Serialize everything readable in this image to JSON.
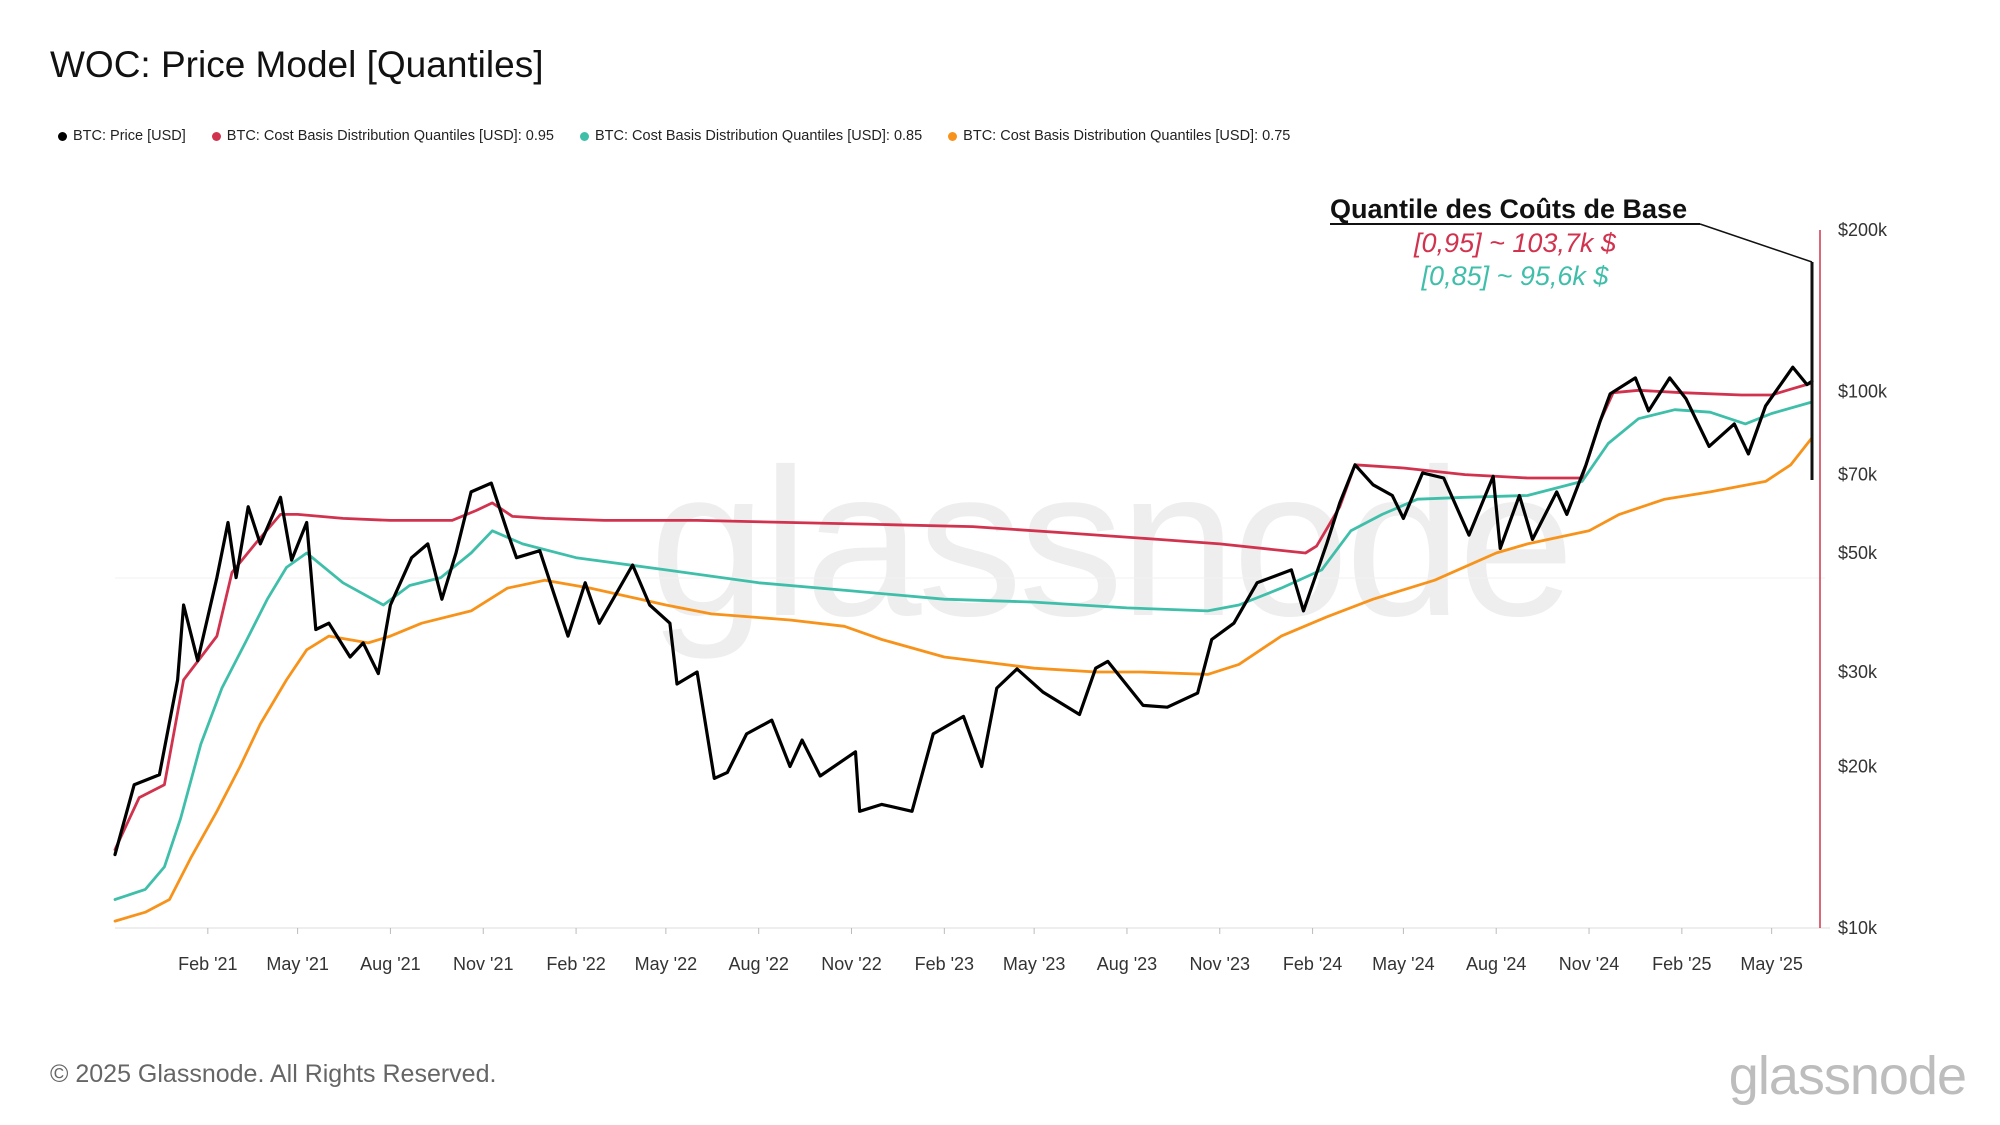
{
  "title": "WOC: Price Model [Quantiles]",
  "legend": [
    {
      "label": "BTC: Price [USD]",
      "color": "#000000"
    },
    {
      "label": "BTC: Cost Basis Distribution Quantiles [USD]: 0.95",
      "color": "#d1334f"
    },
    {
      "label": "BTC: Cost Basis Distribution Quantiles [USD]: 0.85",
      "color": "#3fbfaa"
    },
    {
      "label": "BTC: Cost Basis Distribution Quantiles [USD]: 0.75",
      "color": "#f7931a"
    }
  ],
  "annotation": {
    "title": "Quantile des Coûts de Base",
    "line1": "[0,95] ~ 103,7k $",
    "line2": "[0,85] ~ 95,6k $",
    "color1": "#d1334f",
    "color2": "#3fbfaa"
  },
  "watermark": "glassnode",
  "footer": {
    "copyright": "© 2025 Glassnode. All Rights Reserved.",
    "logo": "glassnode"
  },
  "chart_data": {
    "type": "line",
    "scale": "log",
    "ylim": [
      10000,
      200000
    ],
    "xlim": [
      "2020-11-01",
      "2025-06-10"
    ],
    "xticks": [
      {
        "date": "2021-02-01",
        "label": "Feb '21"
      },
      {
        "date": "2021-05-01",
        "label": "May '21"
      },
      {
        "date": "2021-08-01",
        "label": "Aug '21"
      },
      {
        "date": "2021-11-01",
        "label": "Nov '21"
      },
      {
        "date": "2022-02-01",
        "label": "Feb '22"
      },
      {
        "date": "2022-05-01",
        "label": "May '22"
      },
      {
        "date": "2022-08-01",
        "label": "Aug '22"
      },
      {
        "date": "2022-11-01",
        "label": "Nov '22"
      },
      {
        "date": "2023-02-01",
        "label": "Feb '23"
      },
      {
        "date": "2023-05-01",
        "label": "May '23"
      },
      {
        "date": "2023-08-01",
        "label": "Aug '23"
      },
      {
        "date": "2023-11-01",
        "label": "Nov '23"
      },
      {
        "date": "2024-02-01",
        "label": "Feb '24"
      },
      {
        "date": "2024-05-01",
        "label": "May '24"
      },
      {
        "date": "2024-08-01",
        "label": "Aug '24"
      },
      {
        "date": "2024-11-01",
        "label": "Nov '24"
      },
      {
        "date": "2025-02-01",
        "label": "Feb '25"
      },
      {
        "date": "2025-05-01",
        "label": "May '25"
      }
    ],
    "yticks": [
      {
        "value": 10000,
        "label": "$10k"
      },
      {
        "value": 20000,
        "label": "$20k"
      },
      {
        "value": 30000,
        "label": "$30k"
      },
      {
        "value": 50000,
        "label": "$50k"
      },
      {
        "value": 70000,
        "label": "$70k"
      },
      {
        "value": 100000,
        "label": "$100k"
      },
      {
        "value": 200000,
        "label": "$200k"
      }
    ],
    "series": [
      {
        "name": "BTC: Price [USD]",
        "color": "#000000",
        "points": [
          [
            "2020-11-01",
            13700
          ],
          [
            "2020-11-20",
            18500
          ],
          [
            "2020-12-15",
            19300
          ],
          [
            "2021-01-02",
            29000
          ],
          [
            "2021-01-08",
            40000
          ],
          [
            "2021-01-22",
            31500
          ],
          [
            "2021-02-10",
            45000
          ],
          [
            "2021-02-21",
            57000
          ],
          [
            "2021-03-01",
            45000
          ],
          [
            "2021-03-13",
            61000
          ],
          [
            "2021-03-25",
            52000
          ],
          [
            "2021-04-14",
            63500
          ],
          [
            "2021-04-25",
            48500
          ],
          [
            "2021-05-10",
            57000
          ],
          [
            "2021-05-19",
            36000
          ],
          [
            "2021-06-01",
            37000
          ],
          [
            "2021-06-22",
            32000
          ],
          [
            "2021-07-05",
            34000
          ],
          [
            "2021-07-20",
            29800
          ],
          [
            "2021-08-01",
            40000
          ],
          [
            "2021-08-22",
            49000
          ],
          [
            "2021-09-07",
            52000
          ],
          [
            "2021-09-21",
            41000
          ],
          [
            "2021-10-05",
            50000
          ],
          [
            "2021-10-20",
            65000
          ],
          [
            "2021-11-09",
            67500
          ],
          [
            "2021-11-26",
            54000
          ],
          [
            "2021-12-04",
            49000
          ],
          [
            "2021-12-27",
            50500
          ],
          [
            "2022-01-10",
            42000
          ],
          [
            "2022-01-24",
            35000
          ],
          [
            "2022-02-10",
            44000
          ],
          [
            "2022-02-24",
            37000
          ],
          [
            "2022-03-29",
            47500
          ],
          [
            "2022-04-15",
            40000
          ],
          [
            "2022-05-05",
            37000
          ],
          [
            "2022-05-12",
            28500
          ],
          [
            "2022-06-01",
            30000
          ],
          [
            "2022-06-18",
            19000
          ],
          [
            "2022-07-01",
            19500
          ],
          [
            "2022-07-20",
            23000
          ],
          [
            "2022-08-14",
            24400
          ],
          [
            "2022-09-01",
            20000
          ],
          [
            "2022-09-13",
            22400
          ],
          [
            "2022-10-01",
            19200
          ],
          [
            "2022-11-05",
            21300
          ],
          [
            "2022-11-09",
            16500
          ],
          [
            "2022-12-01",
            17000
          ],
          [
            "2022-12-31",
            16500
          ],
          [
            "2023-01-21",
            23000
          ],
          [
            "2023-02-20",
            24800
          ],
          [
            "2023-03-10",
            20000
          ],
          [
            "2023-03-25",
            28000
          ],
          [
            "2023-04-14",
            30400
          ],
          [
            "2023-05-10",
            27500
          ],
          [
            "2023-06-15",
            25000
          ],
          [
            "2023-07-01",
            30500
          ],
          [
            "2023-07-13",
            31400
          ],
          [
            "2023-08-17",
            26000
          ],
          [
            "2023-09-10",
            25800
          ],
          [
            "2023-10-10",
            27400
          ],
          [
            "2023-10-24",
            34500
          ],
          [
            "2023-11-15",
            37000
          ],
          [
            "2023-12-08",
            44000
          ],
          [
            "2024-01-11",
            46500
          ],
          [
            "2024-01-23",
            39000
          ],
          [
            "2024-02-15",
            52000
          ],
          [
            "2024-02-28",
            62000
          ],
          [
            "2024-03-14",
            73000
          ],
          [
            "2024-04-01",
            67000
          ],
          [
            "2024-04-20",
            64000
          ],
          [
            "2024-05-01",
            58000
          ],
          [
            "2024-05-20",
            70500
          ],
          [
            "2024-06-10",
            69000
          ],
          [
            "2024-07-05",
            54000
          ],
          [
            "2024-07-29",
            69500
          ],
          [
            "2024-08-05",
            51000
          ],
          [
            "2024-08-24",
            64000
          ],
          [
            "2024-09-06",
            53000
          ],
          [
            "2024-09-30",
            65000
          ],
          [
            "2024-10-10",
            59000
          ],
          [
            "2024-10-29",
            73000
          ],
          [
            "2024-11-12",
            88000
          ],
          [
            "2024-11-22",
            99000
          ],
          [
            "2024-12-17",
            106000
          ],
          [
            "2024-12-30",
            92000
          ],
          [
            "2025-01-20",
            106000
          ],
          [
            "2025-02-05",
            97000
          ],
          [
            "2025-02-28",
            79000
          ],
          [
            "2025-03-25",
            87000
          ],
          [
            "2025-04-08",
            76500
          ],
          [
            "2025-04-25",
            94000
          ],
          [
            "2025-05-22",
            111000
          ],
          [
            "2025-06-05",
            103000
          ],
          [
            "2025-06-10",
            104500
          ]
        ]
      },
      {
        "name": "BTC: Cost Basis Distribution Quantiles [USD]: 0.95",
        "color": "#d1334f",
        "points": [
          [
            "2020-11-01",
            14000
          ],
          [
            "2020-11-25",
            17500
          ],
          [
            "2020-12-20",
            18500
          ],
          [
            "2021-01-08",
            29000
          ],
          [
            "2021-02-10",
            35000
          ],
          [
            "2021-02-25",
            46000
          ],
          [
            "2021-03-20",
            52000
          ],
          [
            "2021-04-14",
            59000
          ],
          [
            "2021-05-01",
            59000
          ],
          [
            "2021-06-15",
            58000
          ],
          [
            "2021-08-01",
            57500
          ],
          [
            "2021-10-01",
            57500
          ],
          [
            "2021-10-25",
            60000
          ],
          [
            "2021-11-10",
            62000
          ],
          [
            "2021-11-30",
            58500
          ],
          [
            "2022-01-01",
            58000
          ],
          [
            "2022-03-01",
            57500
          ],
          [
            "2022-06-01",
            57500
          ],
          [
            "2022-09-01",
            57000
          ],
          [
            "2022-12-01",
            56500
          ],
          [
            "2023-03-01",
            56000
          ],
          [
            "2023-06-01",
            54500
          ],
          [
            "2023-09-01",
            53000
          ],
          [
            "2023-11-01",
            52000
          ],
          [
            "2024-01-25",
            50000
          ],
          [
            "2024-02-05",
            51500
          ],
          [
            "2024-02-28",
            61000
          ],
          [
            "2024-03-14",
            73000
          ],
          [
            "2024-05-01",
            72000
          ],
          [
            "2024-07-01",
            70000
          ],
          [
            "2024-09-01",
            69000
          ],
          [
            "2024-10-25",
            69000
          ],
          [
            "2024-11-12",
            88000
          ],
          [
            "2024-11-25",
            99500
          ],
          [
            "2024-12-20",
            100500
          ],
          [
            "2025-02-01",
            99500
          ],
          [
            "2025-04-01",
            98500
          ],
          [
            "2025-05-01",
            98500
          ],
          [
            "2025-05-20",
            101000
          ],
          [
            "2025-06-10",
            103700
          ]
        ]
      },
      {
        "name": "BTC: Cost Basis Distribution Quantiles [USD]: 0.85",
        "color": "#3fbfaa",
        "points": [
          [
            "2020-11-01",
            11300
          ],
          [
            "2020-12-01",
            11800
          ],
          [
            "2020-12-20",
            13000
          ],
          [
            "2021-01-05",
            16000
          ],
          [
            "2021-01-25",
            22000
          ],
          [
            "2021-02-15",
            28000
          ],
          [
            "2021-03-10",
            34000
          ],
          [
            "2021-04-01",
            41000
          ],
          [
            "2021-04-20",
            47000
          ],
          [
            "2021-05-10",
            50000
          ],
          [
            "2021-06-15",
            44000
          ],
          [
            "2021-07-25",
            40000
          ],
          [
            "2021-08-20",
            43500
          ],
          [
            "2021-09-20",
            45000
          ],
          [
            "2021-10-20",
            50000
          ],
          [
            "2021-11-10",
            55000
          ],
          [
            "2021-12-10",
            52000
          ],
          [
            "2022-02-01",
            49000
          ],
          [
            "2022-05-01",
            46500
          ],
          [
            "2022-08-01",
            44000
          ],
          [
            "2022-11-01",
            42500
          ],
          [
            "2023-02-01",
            41000
          ],
          [
            "2023-05-01",
            40500
          ],
          [
            "2023-08-01",
            39500
          ],
          [
            "2023-10-20",
            39000
          ],
          [
            "2023-11-20",
            40000
          ],
          [
            "2024-01-01",
            43000
          ],
          [
            "2024-02-10",
            46500
          ],
          [
            "2024-03-10",
            55000
          ],
          [
            "2024-04-10",
            59000
          ],
          [
            "2024-05-15",
            63000
          ],
          [
            "2024-07-01",
            63500
          ],
          [
            "2024-09-01",
            64000
          ],
          [
            "2024-10-25",
            68000
          ],
          [
            "2024-11-20",
            80000
          ],
          [
            "2024-12-20",
            89000
          ],
          [
            "2025-01-25",
            92500
          ],
          [
            "2025-03-01",
            91500
          ],
          [
            "2025-04-05",
            87000
          ],
          [
            "2025-05-01",
            91000
          ],
          [
            "2025-06-10",
            95600
          ]
        ]
      },
      {
        "name": "BTC: Cost Basis Distribution Quantiles [USD]: 0.75",
        "color": "#f7931a",
        "points": [
          [
            "2020-11-01",
            10300
          ],
          [
            "2020-12-01",
            10700
          ],
          [
            "2020-12-25",
            11300
          ],
          [
            "2021-01-15",
            13500
          ],
          [
            "2021-02-10",
            16500
          ],
          [
            "2021-03-05",
            20000
          ],
          [
            "2021-03-25",
            24000
          ],
          [
            "2021-04-20",
            29000
          ],
          [
            "2021-05-10",
            33000
          ],
          [
            "2021-06-01",
            35000
          ],
          [
            "2021-07-10",
            34000
          ],
          [
            "2021-08-01",
            35000
          ],
          [
            "2021-09-01",
            37000
          ],
          [
            "2021-10-20",
            39000
          ],
          [
            "2021-11-25",
            43000
          ],
          [
            "2022-01-01",
            44500
          ],
          [
            "2022-02-15",
            43000
          ],
          [
            "2022-05-01",
            40000
          ],
          [
            "2022-06-15",
            38500
          ],
          [
            "2022-09-01",
            37500
          ],
          [
            "2022-10-25",
            36500
          ],
          [
            "2022-12-01",
            34500
          ],
          [
            "2023-02-01",
            32000
          ],
          [
            "2023-05-01",
            30500
          ],
          [
            "2023-07-01",
            30000
          ],
          [
            "2023-08-15",
            30000
          ],
          [
            "2023-10-20",
            29700
          ],
          [
            "2023-11-20",
            31000
          ],
          [
            "2024-01-01",
            35000
          ],
          [
            "2024-02-15",
            38000
          ],
          [
            "2024-04-01",
            41000
          ],
          [
            "2024-06-01",
            44500
          ],
          [
            "2024-08-01",
            50000
          ],
          [
            "2024-09-01",
            52000
          ],
          [
            "2024-11-01",
            55000
          ],
          [
            "2024-12-01",
            59000
          ],
          [
            "2025-01-15",
            63000
          ],
          [
            "2025-03-01",
            65000
          ],
          [
            "2025-04-25",
            68000
          ],
          [
            "2025-05-20",
            73000
          ],
          [
            "2025-06-10",
            82000
          ]
        ]
      }
    ]
  }
}
